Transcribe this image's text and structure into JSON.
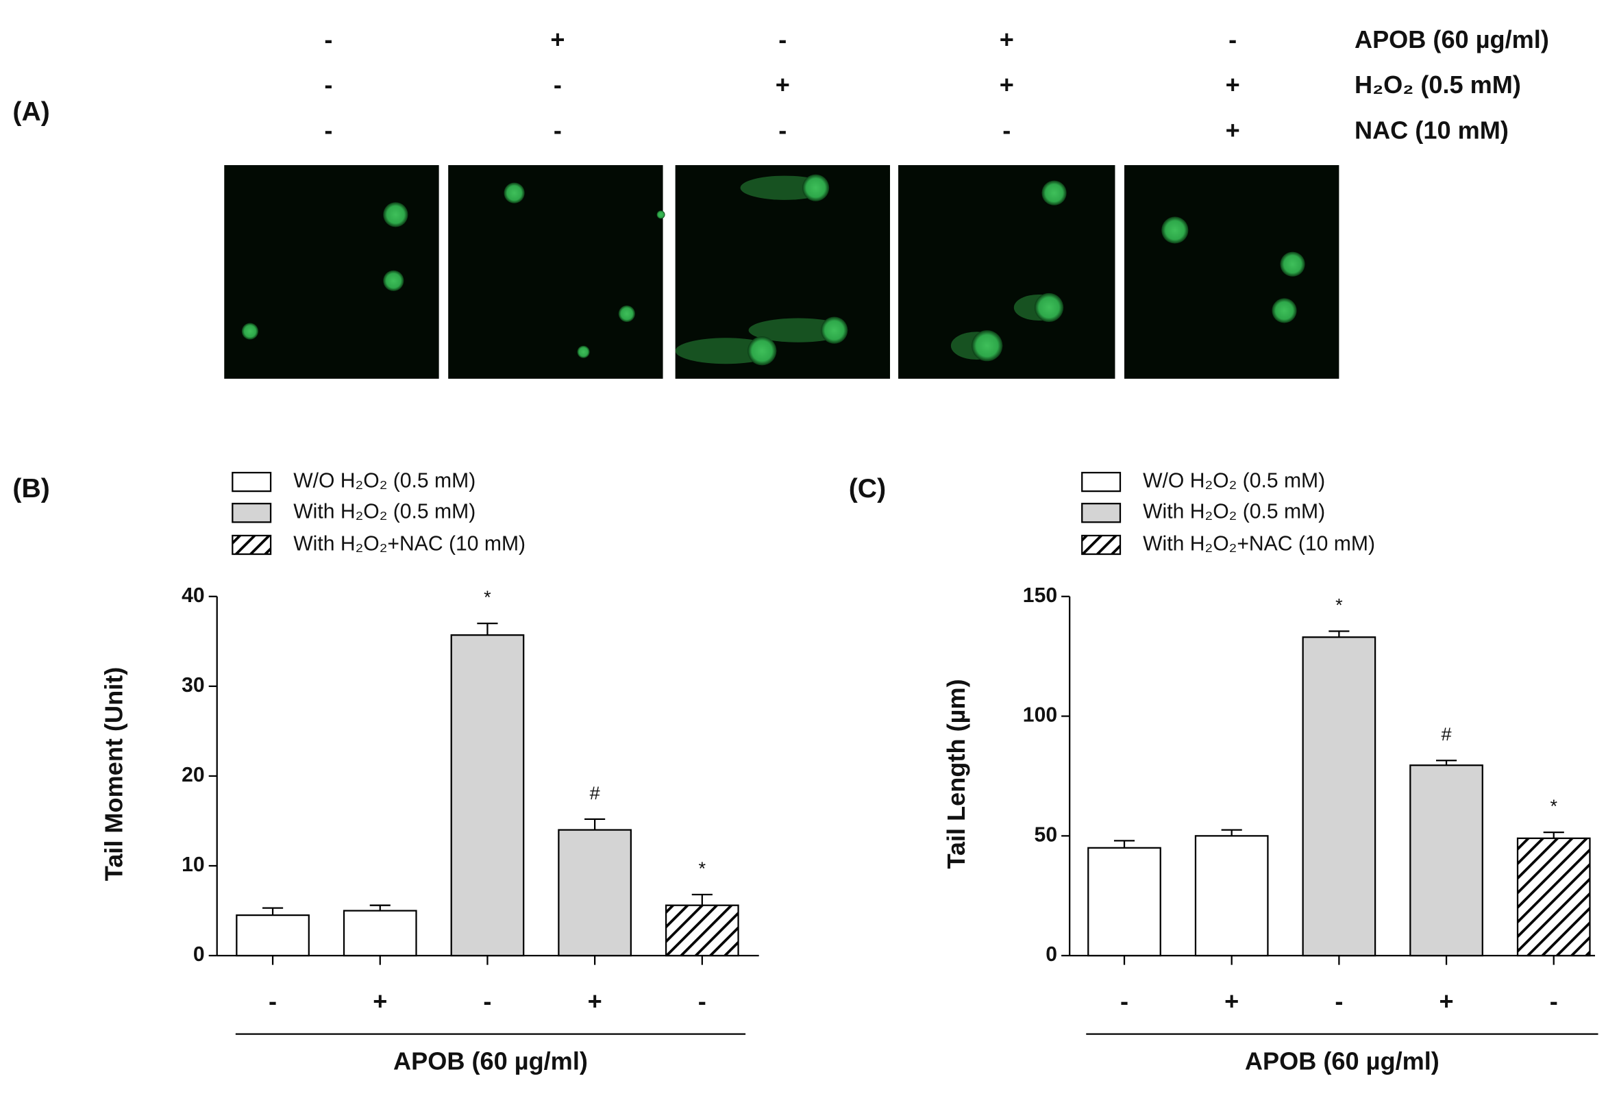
{
  "panel_a": {
    "label": "(A)",
    "rows": [
      {
        "name": "APOB (60 µg/ml)",
        "signs": [
          "-",
          "+",
          "-",
          "+",
          "-"
        ]
      },
      {
        "name": "H₂O₂ (0.5 mM)",
        "signs": [
          "-",
          "-",
          "+",
          "+",
          "+"
        ]
      },
      {
        "name": "NAC (10 mM)",
        "signs": [
          "-",
          "-",
          "-",
          "-",
          "+"
        ]
      }
    ]
  },
  "chart_data": [
    {
      "type": "bar",
      "panel_label": "(B)",
      "y_label": "Tail Moment (Unit)",
      "x_label": "APOB (60 µg/ml)",
      "categories": [
        "-",
        "+",
        "-",
        "+",
        "-"
      ],
      "series": [
        {
          "name": "W/O H₂O₂ (0.5 mM)",
          "color": "#ffffff",
          "values": [
            4.5,
            5.0,
            null,
            null,
            null
          ],
          "errors": [
            0.8,
            0.6,
            null,
            null,
            null
          ]
        },
        {
          "name": "With H₂O₂ (0.5 mM)",
          "color": "#d4d4d4",
          "values": [
            null,
            null,
            35.7,
            14.0,
            null
          ],
          "errors": [
            null,
            null,
            1.3,
            1.2,
            null
          ]
        },
        {
          "name": "With H₂O₂+NAC (10 mM)",
          "color": "#000000",
          "fill_pattern": "hatch",
          "values": [
            null,
            null,
            null,
            null,
            5.6
          ],
          "errors": [
            null,
            null,
            null,
            null,
            1.2
          ]
        }
      ],
      "markers": [
        null,
        null,
        "*",
        "#",
        "*"
      ],
      "ylim": [
        0,
        40
      ],
      "yticks": [
        0,
        10,
        20,
        30,
        40
      ]
    },
    {
      "type": "bar",
      "panel_label": "(C)",
      "y_label": "Tail Length (µm)",
      "x_label": "APOB (60 µg/ml)",
      "categories": [
        "-",
        "+",
        "-",
        "+",
        "-"
      ],
      "series": [
        {
          "name": "W/O H₂O₂ (0.5 mM)",
          "color": "#ffffff",
          "values": [
            45,
            50,
            null,
            null,
            null
          ],
          "errors": [
            3,
            2.5,
            null,
            null,
            null
          ]
        },
        {
          "name": "With H₂O₂ (0.5 mM)",
          "color": "#d4d4d4",
          "values": [
            null,
            null,
            133,
            79.5,
            null
          ],
          "errors": [
            null,
            null,
            2.5,
            2,
            null
          ]
        },
        {
          "name": "With H₂O₂+NAC (10 mM)",
          "color": "#000000",
          "fill_pattern": "hatch",
          "values": [
            null,
            null,
            null,
            null,
            49
          ],
          "errors": [
            null,
            null,
            null,
            null,
            2.5
          ]
        }
      ],
      "markers": [
        null,
        null,
        "*",
        "#",
        "*"
      ],
      "ylim": [
        0,
        150
      ],
      "yticks": [
        0,
        50,
        100,
        150
      ]
    }
  ]
}
